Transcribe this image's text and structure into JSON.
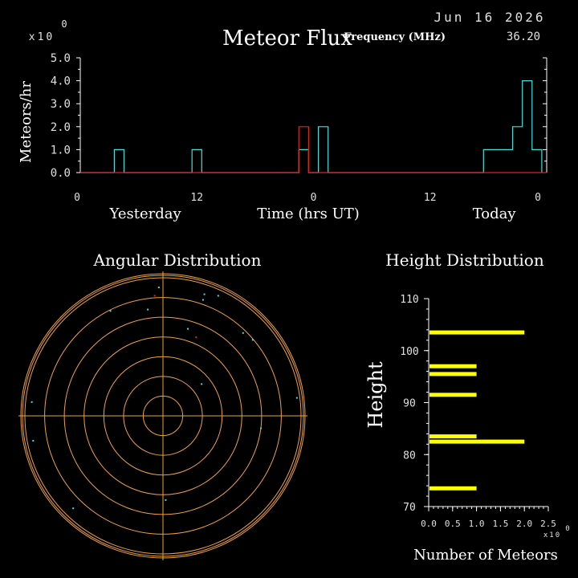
{
  "header": {
    "date": "Jun 16 2026",
    "frequency_label": "Frequency (MHz)",
    "frequency_value": "36.20"
  },
  "colors": {
    "background": "#000000",
    "axis": "#ffffff",
    "cyan": "#40e0e0",
    "red": "#e02020",
    "orange": "#f0a040",
    "yellow": "#ffff00"
  },
  "chart_data": [
    {
      "type": "line",
      "title": "Meteor Flux",
      "ylabel": "Meteors/hr",
      "xlabel": "Time (hrs UT)",
      "scale_label": "x10",
      "scale_exponent": "0",
      "ylim": [
        0,
        5
      ],
      "yticks": [
        "0.0",
        "1.0",
        "2.0",
        "3.0",
        "4.0",
        "5.0"
      ],
      "xlim": [
        0,
        48
      ],
      "xticks": [
        {
          "x": 0,
          "label": "0"
        },
        {
          "x": 12,
          "label": "12"
        },
        {
          "x": 24,
          "label": "0"
        },
        {
          "x": 36,
          "label": "12"
        },
        {
          "x": 48,
          "label": "0"
        }
      ],
      "day_labels": [
        {
          "x": 6.7,
          "label": "Yesterday"
        },
        {
          "x": 42.6,
          "label": "Today"
        }
      ],
      "series": [
        {
          "color": "cyan",
          "points": [
            [
              0,
              0
            ],
            [
              3.5,
              0
            ],
            [
              3.5,
              1
            ],
            [
              4.5,
              1
            ],
            [
              4.5,
              0
            ],
            [
              11.5,
              0
            ],
            [
              11.5,
              1
            ],
            [
              12.5,
              1
            ],
            [
              12.5,
              0
            ],
            [
              22.5,
              0
            ],
            [
              22.5,
              1
            ],
            [
              23.5,
              1
            ],
            [
              23.5,
              0
            ],
            [
              24.5,
              0
            ],
            [
              24.5,
              2
            ],
            [
              25.5,
              2
            ],
            [
              25.5,
              0
            ],
            [
              41.5,
              0
            ],
            [
              41.5,
              1
            ],
            [
              44.5,
              1
            ],
            [
              44.5,
              2
            ],
            [
              45.5,
              2
            ],
            [
              45.5,
              4
            ],
            [
              46.5,
              4
            ],
            [
              46.5,
              1
            ],
            [
              47.5,
              1
            ],
            [
              47.5,
              0
            ]
          ]
        },
        {
          "color": "red",
          "points": [
            [
              0,
              0
            ],
            [
              22.5,
              0
            ],
            [
              22.5,
              2
            ],
            [
              23.5,
              2
            ],
            [
              23.5,
              0
            ],
            [
              48,
              0
            ]
          ]
        }
      ]
    },
    {
      "type": "scatter",
      "title": "Angular Distribution",
      "ring_count": 7,
      "points": [
        {
          "x": -0.03,
          "y": 0.93,
          "c": "cyan"
        },
        {
          "x": -0.06,
          "y": 0.87,
          "c": "red"
        },
        {
          "x": -0.11,
          "y": 0.77,
          "c": "cyan"
        },
        {
          "x": -0.38,
          "y": 0.76,
          "c": "cyan"
        },
        {
          "x": 0.29,
          "y": 0.84,
          "c": "cyan"
        },
        {
          "x": 0.4,
          "y": 0.87,
          "c": "cyan"
        },
        {
          "x": 0.3,
          "y": 0.88,
          "c": "cyan"
        },
        {
          "x": 0.58,
          "y": 0.6,
          "c": "cyan"
        },
        {
          "x": 0.65,
          "y": 0.55,
          "c": "cyan"
        },
        {
          "x": 0.18,
          "y": 0.63,
          "c": "cyan"
        },
        {
          "x": 0.24,
          "y": 0.57,
          "c": "red"
        },
        {
          "x": 0.28,
          "y": 0.23,
          "c": "cyan"
        },
        {
          "x": -0.95,
          "y": 0.1,
          "c": "cyan"
        },
        {
          "x": 0.97,
          "y": 0.13,
          "c": "cyan"
        },
        {
          "x": 0.71,
          "y": -0.09,
          "c": "cyan"
        },
        {
          "x": -0.94,
          "y": -0.18,
          "c": "cyan"
        },
        {
          "x": -0.65,
          "y": -0.67,
          "c": "cyan"
        },
        {
          "x": 0.02,
          "y": -0.61,
          "c": "cyan"
        }
      ]
    },
    {
      "type": "bar",
      "orientation": "horizontal",
      "title": "Height Distribution",
      "ylabel": "Height",
      "xlabel": "Number of Meteors",
      "scale_label": "x10",
      "scale_exponent": "0",
      "ylim": [
        70,
        110
      ],
      "yticks": [
        "70",
        "80",
        "90",
        "100",
        "110"
      ],
      "xlim": [
        0,
        2.5
      ],
      "xticks": [
        "0.0",
        "0.5",
        "1.0",
        "1.5",
        "2.0",
        "2.5"
      ],
      "bars": [
        {
          "height": 73.5,
          "value": 1
        },
        {
          "height": 82.5,
          "value": 2
        },
        {
          "height": 83.5,
          "value": 1
        },
        {
          "height": 91.5,
          "value": 1
        },
        {
          "height": 95.5,
          "value": 1
        },
        {
          "height": 97.0,
          "value": 1
        },
        {
          "height": 103.5,
          "value": 2
        }
      ]
    }
  ]
}
